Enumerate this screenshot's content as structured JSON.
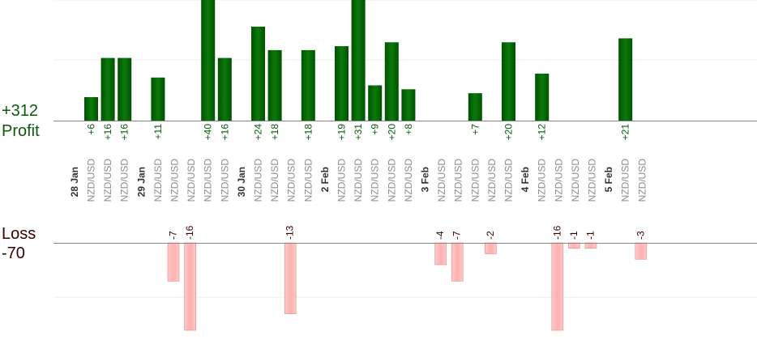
{
  "profit_total": "+312",
  "profit_label": "Profit",
  "loss_label": "Loss",
  "loss_total": "-70",
  "colors": {
    "profit_bar": "#0b6b0b",
    "profit_text": "#0a5a0a",
    "loss_bar": "#ffb6b6",
    "loss_bar_border": "#e08a8a",
    "loss_text": "#3a0000",
    "pair_text": "#8c8c8c",
    "date_text": "#333333",
    "grid": "#eeeeee"
  },
  "chart_data": {
    "type": "bar",
    "title": "",
    "xlabel": "",
    "ylabel": "",
    "grid": true,
    "profit_ylim": [
      0,
      31
    ],
    "loss_ylim": [
      -16,
      0
    ],
    "trades": [
      {
        "pair": "NZD/USD",
        "value": 6
      },
      {
        "pair": "NZD/USD",
        "value": 16
      },
      {
        "pair": "NZD/USD",
        "value": 16
      },
      {
        "pair": "NZD/USD",
        "value": 11
      },
      {
        "pair": "NZD/USD",
        "value": -7
      },
      {
        "pair": "NZD/USD",
        "value": -16
      },
      {
        "pair": "NZD/USD",
        "value": 40
      },
      {
        "pair": "NZD/USD",
        "value": 16
      },
      {
        "pair": "NZD/USD",
        "value": 24
      },
      {
        "pair": "NZD/USD",
        "value": 18
      },
      {
        "pair": "NZD/USD",
        "value": -13
      },
      {
        "pair": "NZD/USD",
        "value": 18
      },
      {
        "pair": "NZD/USD",
        "value": 19
      },
      {
        "pair": "NZD/USD",
        "value": 31
      },
      {
        "pair": "NZD/USD",
        "value": 9
      },
      {
        "pair": "NZD/USD",
        "value": 20
      },
      {
        "pair": "NZD/USD",
        "value": 8
      },
      {
        "pair": "NZD/USD",
        "value": -4
      },
      {
        "pair": "NZD/USD",
        "value": -7
      },
      {
        "pair": "NZD/USD",
        "value": 7
      },
      {
        "pair": "NZD/USD",
        "value": -2
      },
      {
        "pair": "NZD/USD",
        "value": 20
      },
      {
        "pair": "NZD/USD",
        "value": 12
      },
      {
        "pair": "NZD/USD",
        "value": -16
      },
      {
        "pair": "NZD/USD",
        "value": -1
      },
      {
        "pair": "NZD/USD",
        "value": -1
      },
      {
        "pair": "NZD/USD",
        "value": 21
      },
      {
        "pair": "NZD/USD",
        "value": -3
      }
    ],
    "date_groups": [
      {
        "label": "28 Jan",
        "first_trade": 0
      },
      {
        "label": "29 Jan",
        "first_trade": 3
      },
      {
        "label": "30 Jan",
        "first_trade": 8
      },
      {
        "label": "2 Feb",
        "first_trade": 12
      },
      {
        "label": "3 Feb",
        "first_trade": 17
      },
      {
        "label": "4 Feb",
        "first_trade": 22
      },
      {
        "label": "5 Feb",
        "first_trade": 26
      }
    ]
  }
}
